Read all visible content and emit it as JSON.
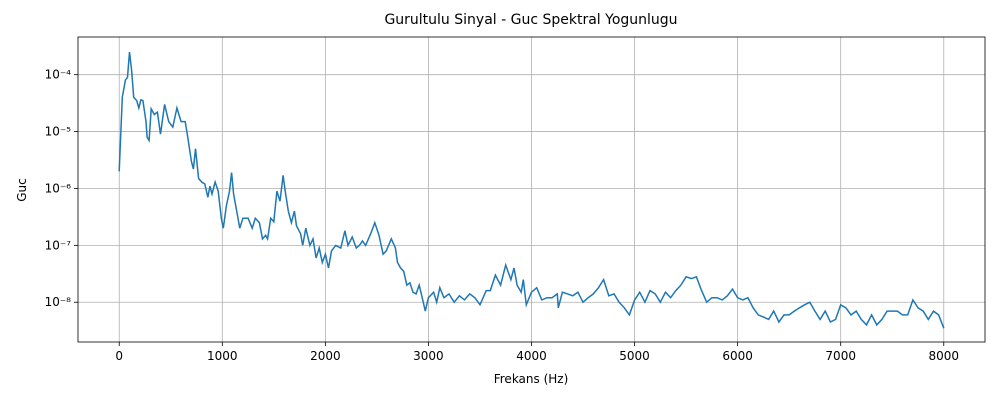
{
  "chart_data": {
    "type": "line",
    "title": "Gurultulu Sinyal - Guc Spektral Yogunlugu",
    "xlabel": "Frekans (Hz)",
    "ylabel": "Guc",
    "yscale": "log",
    "grid": true,
    "xlim": [
      -400,
      8400
    ],
    "ylim": [
      2e-09,
      0.00046
    ],
    "xticks": [
      0,
      1000,
      2000,
      3000,
      4000,
      5000,
      6000,
      7000,
      8000
    ],
    "yticks": [
      {
        "value": 1e-08,
        "label": "10⁻⁸"
      },
      {
        "value": 1e-07,
        "label": "10⁻⁷"
      },
      {
        "value": 1e-06,
        "label": "10⁻⁶"
      },
      {
        "value": 1e-05,
        "label": "10⁻⁵"
      },
      {
        "value": 0.0001,
        "label": "10⁻⁴"
      }
    ],
    "x": [
      0,
      30,
      60,
      80,
      100,
      120,
      140,
      170,
      190,
      210,
      230,
      260,
      270,
      290,
      310,
      340,
      370,
      400,
      440,
      480,
      520,
      560,
      600,
      640,
      660,
      700,
      720,
      740,
      770,
      800,
      830,
      860,
      880,
      900,
      930,
      960,
      990,
      1010,
      1040,
      1070,
      1090,
      1110,
      1140,
      1170,
      1200,
      1250,
      1290,
      1320,
      1360,
      1390,
      1420,
      1440,
      1470,
      1500,
      1530,
      1560,
      1590,
      1610,
      1640,
      1670,
      1700,
      1720,
      1760,
      1780,
      1810,
      1850,
      1880,
      1910,
      1940,
      1970,
      2000,
      2030,
      2060,
      2100,
      2150,
      2190,
      2220,
      2260,
      2300,
      2330,
      2360,
      2390,
      2440,
      2480,
      2520,
      2560,
      2590,
      2640,
      2680,
      2700,
      2730,
      2760,
      2790,
      2820,
      2850,
      2880,
      2910,
      2940,
      2970,
      3000,
      3050,
      3080,
      3110,
      3150,
      3200,
      3250,
      3300,
      3350,
      3400,
      3450,
      3500,
      3560,
      3600,
      3650,
      3700,
      3750,
      3800,
      3830,
      3860,
      3900,
      3920,
      3950,
      4000,
      4050,
      4100,
      4150,
      4200,
      4250,
      4260,
      4300,
      4350,
      4400,
      4450,
      4500,
      4550,
      4600,
      4650,
      4700,
      4750,
      4800,
      4850,
      4900,
      4950,
      5000,
      5050,
      5100,
      5150,
      5200,
      5250,
      5300,
      5350,
      5400,
      5450,
      5500,
      5550,
      5600,
      5650,
      5700,
      5750,
      5800,
      5850,
      5900,
      5950,
      6000,
      6050,
      6100,
      6150,
      6200,
      6250,
      6300,
      6350,
      6400,
      6450,
      6500,
      6550,
      6600,
      6650,
      6700,
      6750,
      6800,
      6850,
      6900,
      6950,
      7000,
      7050,
      7100,
      7150,
      7200,
      7250,
      7300,
      7350,
      7400,
      7450,
      7500,
      7550,
      7600,
      7650,
      7700,
      7750,
      7800,
      7850,
      7900,
      7950,
      8000
    ],
    "series": [
      {
        "color": "#1f77b4",
        "values": [
          2e-06,
          4e-05,
          8e-05,
          9e-05,
          0.00025,
          0.00012,
          4e-05,
          3.5e-05,
          2.6e-05,
          3.6e-05,
          3.5e-05,
          1.5e-05,
          8e-06,
          7e-06,
          2.5e-05,
          2e-05,
          2.2e-05,
          9e-06,
          3e-05,
          1.5e-05,
          1.2e-05,
          2.6e-05,
          1.5e-05,
          1.5e-05,
          9e-06,
          3e-06,
          2.2e-06,
          5e-06,
          1.5e-06,
          1.3e-06,
          1.2e-06,
          7e-07,
          1.1e-06,
          8e-07,
          1.3e-06,
          9e-07,
          3e-07,
          2e-07,
          5e-07,
          9e-07,
          1.9e-06,
          8e-07,
          4e-07,
          2e-07,
          3e-07,
          3e-07,
          2e-07,
          3e-07,
          2.5e-07,
          1.3e-07,
          1.5e-07,
          1.3e-07,
          3e-07,
          2.6e-07,
          9e-07,
          6e-07,
          1.7e-06,
          9e-07,
          4e-07,
          2.5e-07,
          4e-07,
          2.2e-07,
          1.6e-07,
          1e-07,
          2e-07,
          1e-07,
          1.3e-07,
          6e-08,
          9e-08,
          5e-08,
          7e-08,
          4e-08,
          8e-08,
          1e-07,
          9e-08,
          1.8e-07,
          1e-07,
          1.4e-07,
          9e-08,
          1e-07,
          1.2e-07,
          1e-07,
          1.6e-07,
          2.5e-07,
          1.5e-07,
          7e-08,
          8e-08,
          1.3e-07,
          9e-08,
          5e-08,
          4e-08,
          3.5e-08,
          2e-08,
          2.2e-08,
          1.5e-08,
          1.4e-08,
          2e-08,
          1.2e-08,
          7e-09,
          1.2e-08,
          1.5e-08,
          1e-08,
          1.8e-08,
          1.2e-08,
          1.4e-08,
          1e-08,
          1.3e-08,
          1.1e-08,
          1.4e-08,
          1.2e-08,
          9e-09,
          1.6e-08,
          1.6e-08,
          3e-08,
          2e-08,
          4.5e-08,
          2.5e-08,
          4e-08,
          2e-08,
          1.5e-08,
          2.5e-08,
          9e-09,
          1.5e-08,
          1.8e-08,
          1.1e-08,
          1.2e-08,
          1.2e-08,
          1.4e-08,
          8e-09,
          1.5e-08,
          1.4e-08,
          1.3e-08,
          1.5e-08,
          1e-08,
          1.2e-08,
          1.4e-08,
          1.8e-08,
          2.5e-08,
          1.3e-08,
          1.4e-08,
          1e-08,
          8e-09,
          6e-09,
          1.1e-08,
          1.5e-08,
          1e-08,
          1.6e-08,
          1.4e-08,
          1e-08,
          1.5e-08,
          1.2e-08,
          1.6e-08,
          2e-08,
          2.8e-08,
          2.6e-08,
          2.8e-08,
          1.6e-08,
          1e-08,
          1.2e-08,
          1.2e-08,
          1.1e-08,
          1.3e-08,
          1.7e-08,
          1.2e-08,
          1.1e-08,
          1.2e-08,
          8e-09,
          6e-09,
          5.5e-09,
          5e-09,
          7e-09,
          4.5e-09,
          6e-09,
          6e-09,
          7e-09,
          8e-09,
          9e-09,
          1e-08,
          7e-09,
          5e-09,
          7e-09,
          4.5e-09,
          5e-09,
          9e-09,
          8e-09,
          6e-09,
          7e-09,
          5e-09,
          4e-09,
          6e-09,
          4e-09,
          5e-09,
          7e-09,
          7e-09,
          7e-09,
          6e-09,
          6e-09,
          1.1e-08,
          8e-09,
          7e-09,
          5e-09,
          7e-09,
          6e-09,
          3.5e-09
        ]
      }
    ]
  }
}
